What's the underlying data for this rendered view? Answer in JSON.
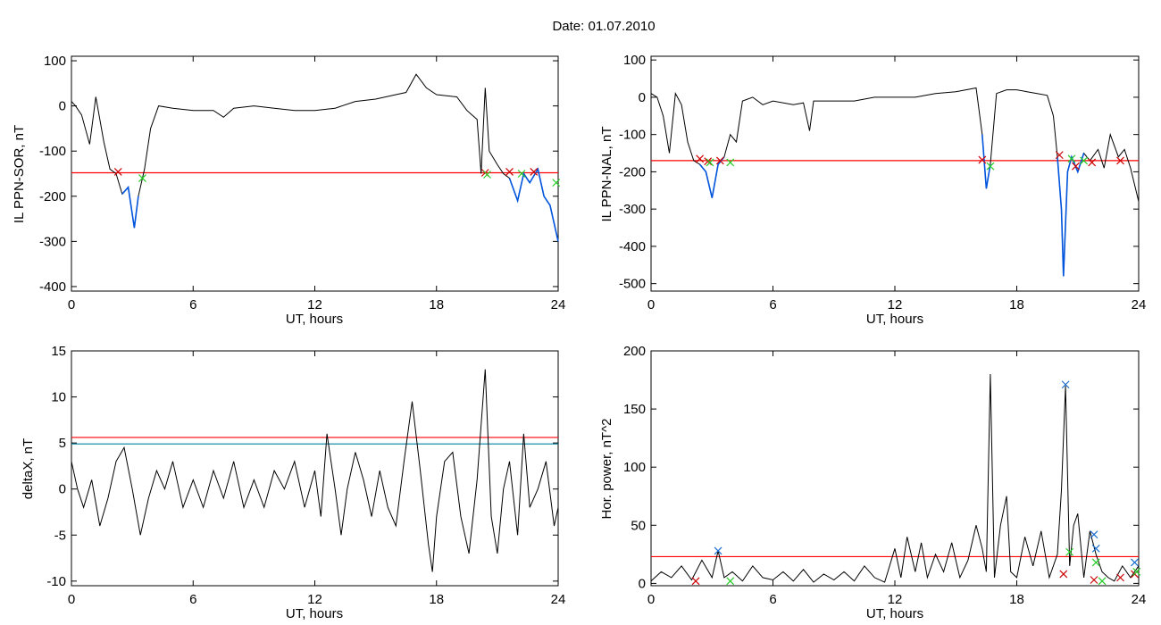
{
  "title": "Date:  01.07.2010",
  "colors": {
    "axis": "#000000",
    "trace": "#000000",
    "threshold": "#ff0000",
    "second_threshold": "#0080a0",
    "highlight": "#0055dd",
    "start_marker": "#cc0000",
    "end_marker": "#22cc22",
    "peak_marker": "#1a6fd0"
  },
  "chart_data": [
    {
      "id": "ppn-sor",
      "type": "line",
      "xlabel": "UT, hours",
      "ylabel": "IL PPN-SOR, nT",
      "xlim": [
        0,
        24
      ],
      "ylim": [
        -410,
        110
      ],
      "xticks": [
        0,
        6,
        12,
        18,
        24
      ],
      "yticks": [
        100,
        0,
        -100,
        -200,
        -300,
        -400
      ],
      "series": [
        {
          "x": [
            0,
            0.2,
            0.5,
            0.9,
            1.2,
            1.6,
            1.9,
            2.2,
            2.5,
            2.8,
            3.1,
            3.3,
            3.6,
            3.9,
            4.3,
            5,
            6,
            7,
            7.5,
            8,
            9,
            10,
            11,
            12,
            13,
            14,
            15,
            16,
            16.5,
            17,
            17.5,
            18,
            19,
            19.5,
            20,
            20.2,
            20.4,
            20.6,
            21,
            21.3,
            21.6,
            22,
            22.3,
            22.6,
            23,
            23.3,
            23.6,
            24
          ],
          "y": [
            10,
            0,
            -20,
            -85,
            20,
            -80,
            -140,
            -150,
            -195,
            -180,
            -270,
            -200,
            -140,
            -50,
            0,
            -5,
            -10,
            -10,
            -25,
            -5,
            0,
            -5,
            -10,
            -10,
            -5,
            10,
            15,
            25,
            30,
            70,
            40,
            25,
            20,
            -10,
            -30,
            -150,
            40,
            -100,
            -130,
            -150,
            -160,
            -210,
            -150,
            -170,
            -140,
            -200,
            -220,
            -300
          ]
        }
      ],
      "threshold": -148,
      "highlighted_segments": [
        [
          2.3,
          3.5
        ],
        [
          21.6,
          24
        ]
      ],
      "start_markers": [
        [
          2.3,
          -146
        ],
        [
          20.4,
          -148
        ],
        [
          21.6,
          -146
        ],
        [
          22.8,
          -146
        ]
      ],
      "end_markers": [
        [
          3.5,
          -160
        ],
        [
          20.5,
          -152
        ],
        [
          22.2,
          -150
        ],
        [
          23.9,
          -170
        ]
      ]
    },
    {
      "id": "ppn-nal",
      "type": "line",
      "xlabel": "UT, hours",
      "ylabel": "IL PPN-NAL, nT",
      "xlim": [
        0,
        24
      ],
      "ylim": [
        -520,
        110
      ],
      "xticks": [
        0,
        6,
        12,
        18,
        24
      ],
      "yticks": [
        100,
        0,
        -100,
        -200,
        -300,
        -400,
        -500
      ],
      "series": [
        {
          "x": [
            0,
            0.3,
            0.6,
            0.9,
            1.2,
            1.5,
            1.8,
            2.1,
            2.4,
            2.7,
            3.0,
            3.3,
            3.6,
            3.9,
            4.2,
            4.5,
            5,
            5.5,
            6,
            7,
            7.5,
            7.8,
            8,
            9,
            10,
            11,
            12,
            13,
            14,
            15,
            16,
            16.3,
            16.5,
            16.7,
            17,
            17.5,
            18,
            18.5,
            19,
            19.5,
            19.8,
            20,
            20.2,
            20.3,
            20.5,
            20.7,
            21,
            21.3,
            21.6,
            22,
            22.3,
            22.6,
            23,
            23.3,
            23.6,
            24
          ],
          "y": [
            10,
            0,
            -50,
            -150,
            10,
            -20,
            -120,
            -170,
            -180,
            -200,
            -270,
            -180,
            -160,
            -100,
            -120,
            -10,
            0,
            -20,
            -10,
            -20,
            -15,
            -90,
            -10,
            -10,
            -10,
            0,
            0,
            0,
            10,
            15,
            25,
            -100,
            -245,
            -180,
            10,
            20,
            20,
            15,
            10,
            5,
            -50,
            -160,
            -300,
            -480,
            -200,
            -160,
            -200,
            -150,
            -170,
            -140,
            -190,
            -100,
            -160,
            -140,
            -190,
            -280
          ]
        }
      ],
      "threshold": -170,
      "highlighted_segments": [
        [
          2.4,
          3.6
        ],
        [
          16.3,
          16.7
        ],
        [
          20.0,
          21.3
        ]
      ],
      "start_markers": [
        [
          2.4,
          -165
        ],
        [
          2.8,
          -172
        ],
        [
          3.4,
          -170
        ],
        [
          16.3,
          -168
        ],
        [
          20.1,
          -155
        ],
        [
          20.9,
          -185
        ],
        [
          21.7,
          -175
        ],
        [
          23.1,
          -170
        ]
      ],
      "end_markers": [
        [
          2.9,
          -175
        ],
        [
          3.9,
          -175
        ],
        [
          16.7,
          -185
        ],
        [
          20.7,
          -165
        ],
        [
          21.3,
          -170
        ]
      ]
    },
    {
      "id": "deltax",
      "type": "line",
      "xlabel": "UT, hours",
      "ylabel": "deltaX, nT",
      "xlim": [
        0,
        24
      ],
      "ylim": [
        -10.5,
        15
      ],
      "xticks": [
        0,
        6,
        12,
        18,
        24
      ],
      "yticks": [
        15,
        10,
        5,
        0,
        -5,
        -10
      ],
      "series": [
        {
          "x": [
            0,
            0.3,
            0.6,
            1,
            1.4,
            1.8,
            2.2,
            2.6,
            3,
            3.4,
            3.8,
            4.2,
            4.6,
            5,
            5.5,
            6,
            6.5,
            7,
            7.5,
            8,
            8.5,
            9,
            9.5,
            10,
            10.5,
            11,
            11.5,
            12,
            12.3,
            12.6,
            13,
            13.3,
            13.6,
            14,
            14.4,
            14.8,
            15.2,
            15.6,
            16,
            16.4,
            16.8,
            17.2,
            17.6,
            17.8,
            18,
            18.4,
            18.8,
            19.2,
            19.6,
            20,
            20.4,
            20.7,
            21,
            21.3,
            21.6,
            22,
            22.3,
            22.6,
            23,
            23.4,
            23.8,
            24
          ],
          "y": [
            3,
            0,
            -2,
            1,
            -4,
            -1,
            3,
            4.5,
            0,
            -5,
            -1,
            2,
            0,
            3,
            -2,
            1,
            -2,
            2,
            -1,
            3,
            -2,
            1,
            -2,
            2,
            0,
            3,
            -2,
            2,
            -3,
            6,
            0,
            -5,
            0,
            4,
            1,
            -3,
            2,
            -2,
            -4,
            3,
            9.5,
            2,
            -6,
            -9,
            -3,
            3,
            4,
            -3,
            -7,
            1,
            13,
            -3,
            -7,
            0,
            3,
            -5,
            6,
            -2,
            0,
            3,
            -4,
            -2
          ]
        }
      ],
      "threshold": 5.6,
      "second_threshold": 4.9
    },
    {
      "id": "hor-power",
      "type": "line",
      "xlabel": "UT, hours",
      "ylabel": "Hor. power, nT^2",
      "xlim": [
        0,
        24
      ],
      "ylim": [
        -2,
        200
      ],
      "xticks": [
        0,
        6,
        12,
        18,
        24
      ],
      "yticks": [
        200,
        150,
        100,
        50,
        0
      ],
      "series": [
        {
          "x": [
            0,
            0.5,
            1,
            1.5,
            2,
            2.5,
            3,
            3.3,
            3.6,
            4,
            4.5,
            5,
            5.5,
            6,
            6.5,
            7,
            7.5,
            8,
            8.5,
            9,
            9.5,
            10,
            10.5,
            11,
            11.5,
            12,
            12.3,
            12.6,
            13,
            13.3,
            13.6,
            14,
            14.4,
            14.8,
            15.2,
            15.6,
            16,
            16.3,
            16.5,
            16.7,
            16.9,
            17.2,
            17.5,
            17.7,
            18,
            18.4,
            18.8,
            19.2,
            19.6,
            20,
            20.2,
            20.4,
            20.6,
            20.8,
            21,
            21.3,
            21.6,
            21.9,
            22.2,
            22.5,
            22.8,
            23.2,
            23.6,
            24
          ],
          "y": [
            2,
            10,
            5,
            15,
            3,
            20,
            5,
            28,
            5,
            10,
            2,
            15,
            5,
            3,
            10,
            2,
            12,
            1,
            8,
            3,
            10,
            2,
            15,
            5,
            1,
            30,
            5,
            40,
            10,
            35,
            5,
            25,
            10,
            35,
            5,
            20,
            50,
            30,
            10,
            180,
            5,
            50,
            75,
            10,
            5,
            40,
            15,
            45,
            5,
            25,
            80,
            170,
            15,
            50,
            60,
            5,
            45,
            25,
            10,
            5,
            2,
            15,
            5,
            15
          ]
        }
      ],
      "threshold": 23,
      "start_markers": [
        [
          2.2,
          2
        ],
        [
          20.3,
          8
        ],
        [
          21.8,
          3
        ],
        [
          23.1,
          5
        ],
        [
          23.8,
          8
        ]
      ],
      "end_markers": [
        [
          3.9,
          2
        ],
        [
          20.6,
          27
        ],
        [
          21.9,
          18
        ],
        [
          22.2,
          2
        ],
        [
          23.9,
          10
        ]
      ],
      "peak_markers": [
        [
          3.3,
          28
        ],
        [
          20.4,
          171
        ],
        [
          21.8,
          42
        ],
        [
          21.9,
          30
        ],
        [
          23.8,
          18
        ]
      ]
    }
  ]
}
